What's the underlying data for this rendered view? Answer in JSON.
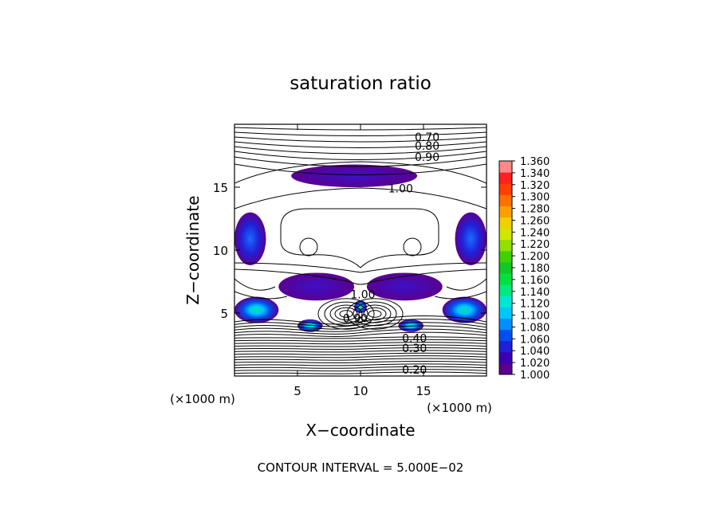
{
  "chart_data": {
    "type": "contour",
    "title": "saturation ratio",
    "xlabel": "X−coordinate",
    "ylabel": "Z−coordinate",
    "x_unit": "(×1000 m)",
    "y_unit": "(×1000 m)",
    "xlim": [
      0,
      20
    ],
    "ylim": [
      0,
      20
    ],
    "xticks": [
      5,
      10,
      15
    ],
    "yticks": [
      5,
      10,
      15
    ],
    "footer": "CONTOUR INTERVAL = 5.000E−02",
    "contour_interval": 0.05,
    "contour_labels": [
      {
        "text": "0.70",
        "x": 14.3,
        "y": 19.0
      },
      {
        "text": "0.80",
        "x": 14.3,
        "y": 18.3
      },
      {
        "text": "0.90",
        "x": 14.3,
        "y": 17.4
      },
      {
        "text": "1.00",
        "x": 12.2,
        "y": 14.9
      },
      {
        "text": "1.00",
        "x": 9.2,
        "y": 6.5
      },
      {
        "text": "0.90",
        "x": 8.6,
        "y": 4.6
      },
      {
        "text": "0.40",
        "x": 13.3,
        "y": 3.0
      },
      {
        "text": "0.30",
        "x": 13.3,
        "y": 2.2
      },
      {
        "text": "0.20",
        "x": 13.3,
        "y": 0.5
      }
    ],
    "colorbar": {
      "min": 1.0,
      "max": 1.36,
      "step": 0.02,
      "labels": [
        "1.360",
        "1.340",
        "1.320",
        "1.300",
        "1.280",
        "1.260",
        "1.240",
        "1.220",
        "1.200",
        "1.180",
        "1.160",
        "1.140",
        "1.120",
        "1.100",
        "1.080",
        "1.060",
        "1.040",
        "1.020",
        "1.000"
      ],
      "colors": [
        "#5a0090",
        "#3c00b4",
        "#2020d8",
        "#0050f0",
        "#0090ff",
        "#00c8ff",
        "#00e8d0",
        "#00e880",
        "#00e040",
        "#10c828",
        "#40d000",
        "#90e000",
        "#d0e800",
        "#f0d000",
        "#ffa000",
        "#ff7000",
        "#ff4000",
        "#ff2020",
        "#ff8888"
      ]
    },
    "supersaturated_regions": [
      {
        "x": [
          4.5,
          14.5
        ],
        "z": [
          15.0,
          16.8
        ],
        "peak": 1.04
      },
      {
        "x": [
          0,
          2.5
        ],
        "z": [
          8.8,
          13.0
        ],
        "peak": 1.06
      },
      {
        "x": [
          17.5,
          20
        ],
        "z": [
          8.8,
          13.0
        ],
        "peak": 1.06
      },
      {
        "x": [
          3.5,
          9.5
        ],
        "z": [
          6.0,
          8.2
        ],
        "peak": 1.04
      },
      {
        "x": [
          10.5,
          16.5
        ],
        "z": [
          6.0,
          8.2
        ],
        "peak": 1.04
      },
      {
        "x": [
          0,
          3.5
        ],
        "z": [
          4.2,
          6.3
        ],
        "peak": 1.12
      },
      {
        "x": [
          16.5,
          20
        ],
        "z": [
          4.2,
          6.3
        ],
        "peak": 1.12
      },
      {
        "x": [
          5.0,
          7.0
        ],
        "z": [
          3.5,
          4.5
        ],
        "peak": 1.1
      },
      {
        "x": [
          13.0,
          15.0
        ],
        "z": [
          3.5,
          4.5
        ],
        "peak": 1.1
      },
      {
        "x": [
          9.5,
          10.5
        ],
        "z": [
          5.0,
          6.0
        ],
        "peak": 1.12
      }
    ]
  }
}
